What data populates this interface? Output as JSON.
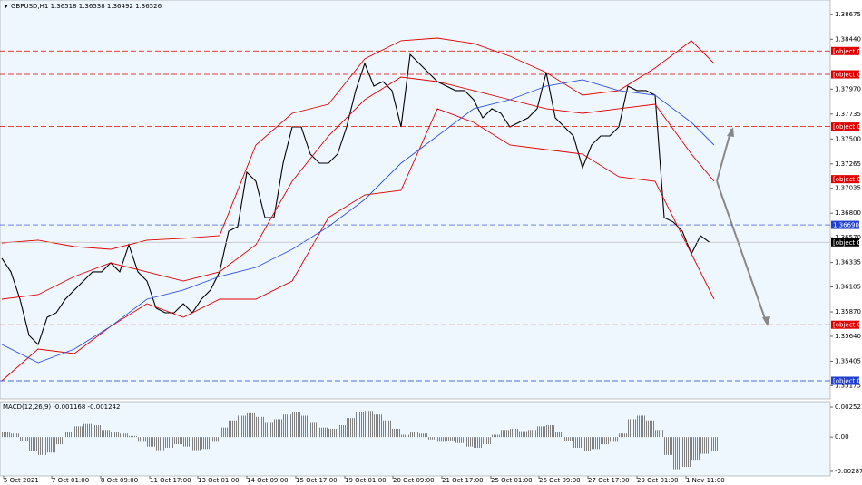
{
  "chart_data": [
    {
      "type": "line",
      "title": "GBPUSD,H1 1.36518 1.36538 1.36492 1.36526",
      "ylim": [
        1.3505,
        1.3881
      ],
      "yticks": [
        1.38675,
        {
          "value": 1.3844,
          "label": "1.38440"
        },
        {
          "value": 1.3797,
          "label": "1.37970"
        },
        1.37735,
        {
          "value": 1.375,
          "label": "1.37500"
        },
        1.37265,
        1.37035,
        {
          "value": 1.368,
          "label": "1.36800"
        },
        {
          "value": 1.3657,
          "label": "1.36570"
        },
        1.36335,
        1.36105,
        {
          "value": 1.3587,
          "label": "1.35870"
        },
        {
          "value": 1.3564,
          "label": "1.35640"
        },
        1.35405,
        1.35175
      ],
      "xticks": [
        {
          "value": 0.2,
          "label": "5 Oct 2021"
        },
        {
          "value": 5.5,
          "label": "7 Oct 01:00"
        },
        {
          "value": 10.9,
          "label": "8 Oct 09:00"
        },
        {
          "value": 16.3,
          "label": "11 Oct 17:00"
        },
        {
          "value": 21.6,
          "label": "13 Oct 01:00"
        },
        {
          "value": 27.0,
          "label": "14 Oct 09:00"
        },
        {
          "value": 32.4,
          "label": "15 Oct 17:00"
        },
        {
          "value": 37.8,
          "label": "19 Oct 01:00"
        },
        {
          "value": 43.1,
          "label": "20 Oct 09:00"
        },
        {
          "value": 48.5,
          "label": "21 Oct 17:00"
        },
        {
          "value": 53.9,
          "label": "25 Oct 01:00"
        },
        {
          "value": 59.2,
          "label": "26 Oct 09:00"
        },
        {
          "value": 64.6,
          "label": "27 Oct 17:00"
        },
        {
          "value": 70.0,
          "label": "29 Oct 01:00"
        },
        {
          "value": 75.4,
          "label": "1 Nov 11:00"
        }
      ],
      "series": [
        {
          "color": "#000000",
          "x": [
            0,
            1,
            2,
            3,
            4,
            5,
            6,
            7,
            8,
            9,
            10,
            11,
            12,
            13,
            14,
            15,
            16,
            17,
            18,
            19,
            20,
            21,
            22,
            23,
            24,
            25,
            26,
            27,
            28,
            29,
            30,
            31,
            32,
            33,
            34,
            35,
            36,
            37,
            38,
            39,
            40,
            41,
            42,
            43,
            44,
            45,
            46,
            47,
            48,
            49,
            50,
            51,
            52,
            53,
            54,
            55,
            56,
            57,
            58,
            59,
            60,
            61,
            62,
            63,
            64,
            65,
            66,
            67,
            68,
            69,
            70,
            71,
            72,
            73,
            74,
            75,
            76,
            77,
            78
          ],
          "values": [
            1.36375,
            1.36247,
            1.3599,
            1.35648,
            1.35563,
            1.35819,
            1.35862,
            1.3599,
            1.36076,
            1.36161,
            1.36247,
            1.36247,
            1.36332,
            1.36247,
            1.36503,
            1.36247,
            1.36161,
            1.35905,
            1.35862,
            1.35862,
            1.35947,
            1.35862,
            1.3599,
            1.36076,
            1.36247,
            1.36631,
            1.36674,
            1.37186,
            1.37101,
            1.36759,
            1.36759,
            1.37272,
            1.37614,
            1.37614,
            1.37357,
            1.37272,
            1.37272,
            1.37357,
            1.37614,
            1.37956,
            1.38212,
            1.37998,
            1.38041,
            1.37956,
            1.37614,
            1.38297,
            1.38212,
            1.38126,
            1.38041,
            1.37998,
            1.37956,
            1.37956,
            1.3787,
            1.37699,
            1.37785,
            1.37742,
            1.37614,
            1.37656,
            1.37699,
            1.37785,
            1.38126,
            1.37699,
            1.37614,
            1.37528,
            1.37229,
            1.37443,
            1.37528,
            1.37528,
            1.37614,
            1.37998,
            1.37956,
            1.37956,
            1.37913,
            1.36759,
            1.36717,
            1.36631,
            1.36417,
            1.36588,
            1.36526
          ]
        },
        {
          "color": "#e00000",
          "x": [
            0,
            4,
            8,
            12,
            16,
            20,
            24,
            28,
            32,
            36,
            40,
            44,
            48,
            52,
            56,
            60,
            64,
            68,
            72,
            76,
            78.5
          ],
          "values": [
            1.3652,
            1.36546,
            1.36486,
            1.3646,
            1.36546,
            1.36563,
            1.36588,
            1.37443,
            1.37742,
            1.37827,
            1.38255,
            1.38426,
            1.38451,
            1.384,
            1.3828,
            1.38126,
            1.37913,
            1.37956,
            1.38169,
            1.38426,
            1.38212
          ]
        },
        {
          "color": "#e00000",
          "x": [
            0,
            4,
            8,
            12,
            16,
            20,
            24,
            28,
            32,
            36,
            40,
            44,
            48,
            52,
            56,
            60,
            64,
            68,
            72,
            76,
            78.5
          ],
          "values": [
            1.3599,
            1.36033,
            1.36204,
            1.36332,
            1.36247,
            1.36161,
            1.36247,
            1.36503,
            1.37101,
            1.37528,
            1.3787,
            1.38084,
            1.38041,
            1.37956,
            1.3787,
            1.37785,
            1.37742,
            1.37785,
            1.37827,
            1.37357,
            1.37101
          ]
        },
        {
          "color": "#e00000",
          "x": [
            0,
            4,
            8,
            12,
            16,
            20,
            24,
            28,
            32,
            36,
            40,
            44,
            48,
            52,
            56,
            60,
            64,
            68,
            72,
            76,
            78.5
          ],
          "values": [
            1.35221,
            1.3552,
            1.35477,
            1.35734,
            1.35947,
            1.35819,
            1.3599,
            1.3599,
            1.36161,
            1.36759,
            1.36973,
            1.37016,
            1.37785,
            1.37656,
            1.37443,
            1.374,
            1.37357,
            1.37144,
            1.37101,
            1.36417,
            1.3599
          ]
        },
        {
          "color": "#3050e0",
          "x": [
            0,
            4,
            8,
            12,
            16,
            20,
            24,
            28,
            32,
            36,
            40,
            44,
            48,
            52,
            56,
            60,
            64,
            68,
            72,
            76,
            78.5
          ],
          "values": [
            1.35563,
            1.35392,
            1.3552,
            1.35734,
            1.3599,
            1.36076,
            1.36204,
            1.36289,
            1.3646,
            1.36674,
            1.3693,
            1.37272,
            1.37528,
            1.37785,
            1.3787,
            1.37998,
            1.38058,
            1.37956,
            1.37913,
            1.37656,
            1.37443
          ]
        }
      ],
      "levels": [
        {
          "value": 1.38329,
          "color": "#e00000"
        },
        {
          "value": 1.38109,
          "color": "#e00000"
        },
        {
          "value": 1.37617,
          "color": "#e00000"
        },
        {
          "value": 1.37121,
          "color": "#e00000"
        },
        {
          "value": 1.3669,
          "label": "1.36690",
          "color": "#2040d0"
        },
        {
          "value": 1.36526,
          "color": "#000000",
          "line_color": "#c0c0c0"
        },
        {
          "value": 1.35749,
          "color": "#e00000"
        },
        {
          "value": 1.35221,
          "color": "#2040d0"
        }
      ]
    },
    {
      "type": "bar",
      "title": "MACD(12,26,9) -0.001168 -0.001242",
      "color": "#808080",
      "ylim": [
        -0.00326,
        0.00298
      ],
      "yticks": [
        0.002521,
        {
          "value": 0,
          "label": "0.00"
        },
        -0.002879
      ],
      "x": [
        0,
        1,
        2,
        3,
        4,
        5,
        6,
        7,
        8,
        9,
        10,
        11,
        12,
        13,
        14,
        15,
        16,
        17,
        18,
        19,
        20,
        21,
        22,
        23,
        24,
        25,
        26,
        27,
        28,
        29,
        30,
        31,
        32,
        33,
        34,
        35,
        36,
        37,
        38,
        39,
        40,
        41,
        42,
        43,
        44,
        45,
        46,
        47,
        48,
        49,
        50,
        51,
        52,
        53,
        54,
        55,
        56,
        57,
        58,
        59,
        60,
        61,
        62,
        63,
        64,
        65,
        66,
        67,
        68,
        69,
        70,
        71,
        72,
        73,
        74,
        75,
        76,
        77,
        78
      ],
      "values": [
        0.0004,
        0.0003,
        -0.0003,
        -0.0012,
        -0.0015,
        -0.0013,
        -0.0006,
        0.0004,
        0.0009,
        0.0011,
        0.001,
        0.0006,
        0.0004,
        0.0003,
        0.0001,
        -0.0004,
        -0.0008,
        -0.0011,
        -0.0009,
        -0.0006,
        -0.0008,
        -0.0011,
        -0.001,
        -0.0004,
        0.0008,
        0.0014,
        0.0018,
        0.002,
        0.0017,
        0.0012,
        0.0015,
        0.0019,
        0.0021,
        0.0018,
        0.0012,
        0.0008,
        0.0007,
        0.001,
        0.0016,
        0.0021,
        0.0022,
        0.0019,
        0.0014,
        0.0007,
        0.0002,
        0.0004,
        0.0003,
        -0.0002,
        -0.0004,
        -0.0003,
        -0.0005,
        -0.0008,
        -0.0009,
        -0.0006,
        0.0002,
        0.0006,
        0.0007,
        0.0005,
        0.0006,
        0.0009,
        0.001,
        0.0004,
        -0.0003,
        -0.0009,
        -0.0012,
        -0.001,
        -0.0006,
        -0.0004,
        0.0003,
        0.0015,
        0.0018,
        0.0014,
        0.0006,
        -0.0015,
        -0.0027,
        -0.0025,
        -0.0019,
        -0.0014,
        -0.0012
      ]
    }
  ]
}
